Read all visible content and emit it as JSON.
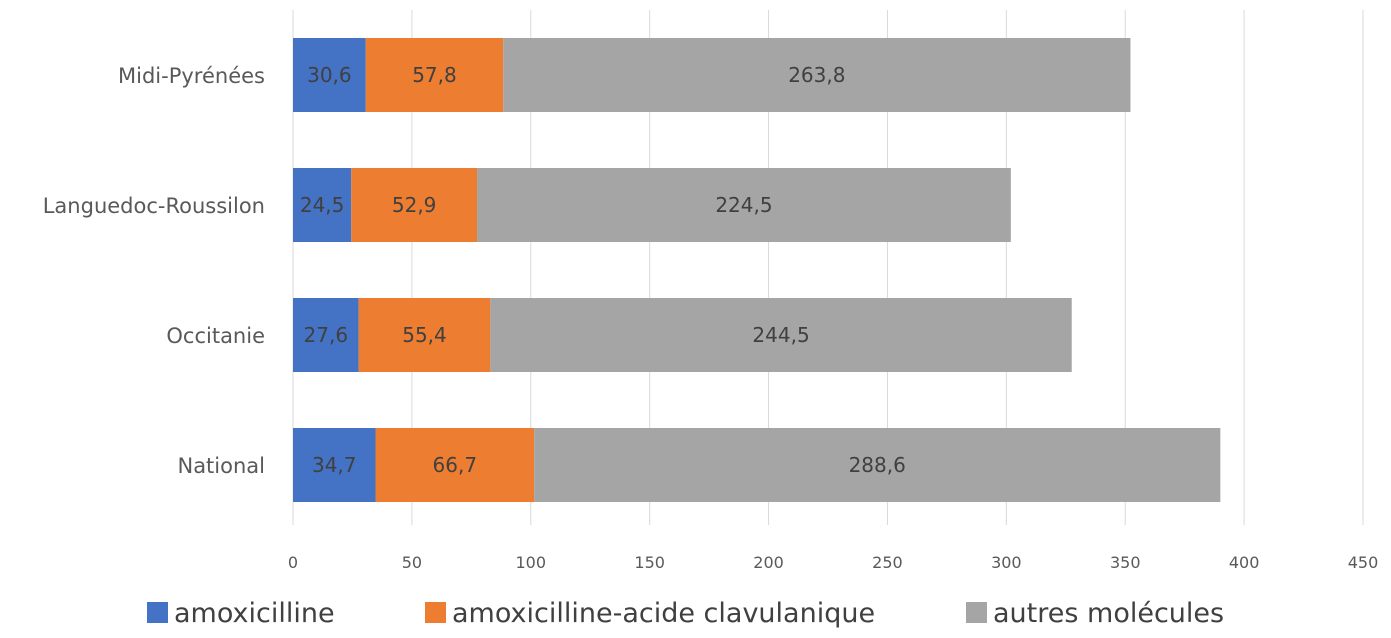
{
  "chart_data": {
    "type": "bar",
    "orientation": "horizontal",
    "stacked": true,
    "categories": [
      "Midi-Pyrénées",
      "Languedoc-Roussilon",
      "Occitanie",
      "National"
    ],
    "series": [
      {
        "name": "amoxicilline",
        "color": "#4472C4",
        "values": [
          30.6,
          24.5,
          27.6,
          34.7
        ],
        "labels": [
          "30,6",
          "24,5",
          "27,6",
          "34,7"
        ]
      },
      {
        "name": "amoxicilline-acide clavulanique",
        "color": "#ED7D31",
        "values": [
          57.8,
          52.9,
          55.4,
          66.7
        ],
        "labels": [
          "57,8",
          "52,9",
          "55,4",
          "66,7"
        ]
      },
      {
        "name": "autres molécules",
        "color": "#A5A5A5",
        "values": [
          263.8,
          224.5,
          244.5,
          288.6
        ],
        "labels": [
          "263,8",
          "224,5",
          "244,5",
          "288,6"
        ]
      }
    ],
    "xlim": [
      0,
      450
    ],
    "ticks": [
      0,
      50,
      100,
      150,
      200,
      250,
      300,
      350,
      400,
      450
    ],
    "grid": true,
    "legend": "bottom"
  }
}
